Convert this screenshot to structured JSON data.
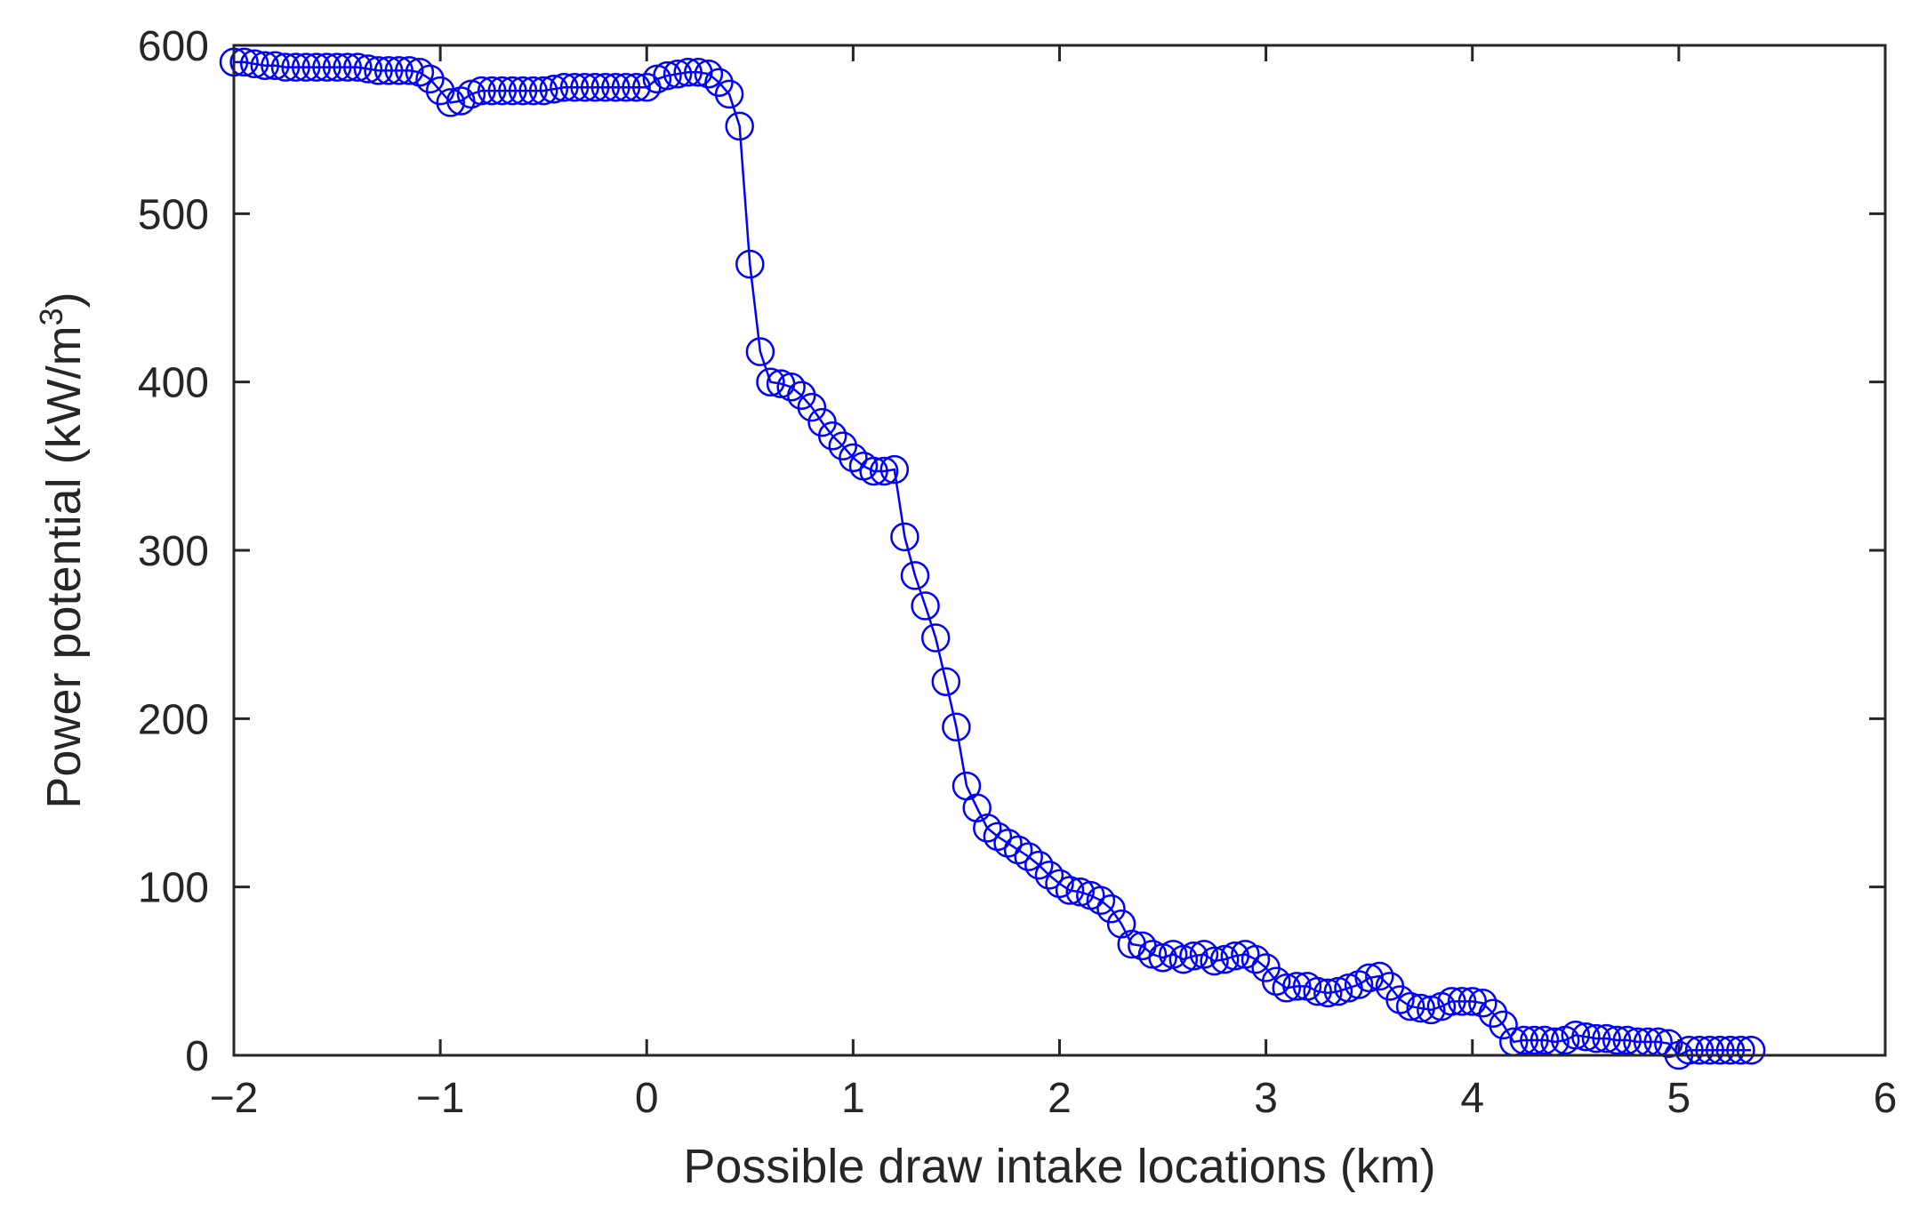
{
  "chart_data": {
    "type": "line",
    "title": "",
    "xlabel": "Possible draw intake locations (km)",
    "ylabel": {
      "main": "Power potential (kW/m",
      "superscript": "3",
      "tail": ")"
    },
    "xlim": [
      -2,
      6
    ],
    "ylim": [
      0,
      600
    ],
    "xticks": [
      {
        "value": -2,
        "label": "−2"
      },
      {
        "value": -1,
        "label": "−1"
      },
      {
        "value": 0,
        "label": "0"
      },
      {
        "value": 1,
        "label": "1"
      },
      {
        "value": 2,
        "label": "2"
      },
      {
        "value": 3,
        "label": "3"
      },
      {
        "value": 4,
        "label": "4"
      },
      {
        "value": 5,
        "label": "5"
      },
      {
        "value": 6,
        "label": "6"
      }
    ],
    "yticks": [
      {
        "value": 0,
        "label": "0"
      },
      {
        "value": 100,
        "label": "100"
      },
      {
        "value": 200,
        "label": "200"
      },
      {
        "value": 300,
        "label": "300"
      },
      {
        "value": 400,
        "label": "400"
      },
      {
        "value": 500,
        "label": "500"
      },
      {
        "value": 600,
        "label": "600"
      }
    ],
    "grid": false,
    "marker": "circle",
    "color": "#0000ff",
    "axis_color": "#262626",
    "series": [
      {
        "x": [
          -2.0,
          -1.95,
          -1.9,
          -1.85,
          -1.8,
          -1.75,
          -1.7,
          -1.65,
          -1.6,
          -1.55,
          -1.5,
          -1.45,
          -1.4,
          -1.35,
          -1.3,
          -1.25,
          -1.2,
          -1.15,
          -1.1,
          -1.05,
          -1.0,
          -0.95,
          -0.9,
          -0.85,
          -0.8,
          -0.75,
          -0.7,
          -0.65,
          -0.6,
          -0.55,
          -0.5,
          -0.45,
          -0.4,
          -0.35,
          -0.3,
          -0.25,
          -0.2,
          -0.15,
          -0.1,
          -0.05,
          0.0,
          0.05,
          0.1,
          0.15,
          0.2,
          0.25,
          0.3,
          0.35,
          0.4,
          0.45,
          0.5,
          0.55,
          0.6,
          0.65,
          0.7,
          0.75,
          0.8,
          0.85,
          0.9,
          0.95,
          1.0,
          1.05,
          1.1,
          1.15,
          1.2,
          1.25,
          1.3,
          1.35,
          1.4,
          1.45,
          1.5,
          1.55,
          1.6,
          1.65,
          1.7,
          1.75,
          1.8,
          1.85,
          1.9,
          1.95,
          2.0,
          2.05,
          2.1,
          2.15,
          2.2,
          2.25,
          2.3,
          2.35,
          2.4,
          2.45,
          2.5,
          2.55,
          2.6,
          2.65,
          2.7,
          2.75,
          2.8,
          2.85,
          2.9,
          2.95,
          3.0,
          3.05,
          3.1,
          3.15,
          3.2,
          3.25,
          3.3,
          3.35,
          3.4,
          3.45,
          3.5,
          3.55,
          3.6,
          3.65,
          3.7,
          3.75,
          3.8,
          3.85,
          3.9,
          3.95,
          4.0,
          4.05,
          4.1,
          4.15,
          4.2,
          4.25,
          4.3,
          4.35,
          4.4,
          4.45,
          4.5,
          4.55,
          4.6,
          4.65,
          4.7,
          4.75,
          4.8,
          4.85,
          4.9,
          4.95,
          5.0,
          5.05,
          5.1,
          5.15,
          5.2,
          5.25,
          5.3,
          5.35
        ],
        "y": [
          590,
          590,
          589,
          588,
          588,
          587,
          587,
          587,
          587,
          587,
          587,
          587,
          587,
          586,
          585,
          585,
          585,
          585,
          584,
          580,
          573,
          566,
          567,
          571,
          573,
          573,
          573,
          573,
          573,
          573,
          573,
          574,
          575,
          575,
          575,
          575,
          575,
          575,
          575,
          575,
          575,
          580,
          582,
          583,
          584,
          584,
          583,
          578,
          571,
          552,
          470,
          418,
          400,
          399,
          397,
          392,
          385,
          376,
          368,
          362,
          355,
          350,
          347,
          347,
          348,
          308,
          285,
          267,
          248,
          222,
          195,
          160,
          147,
          135,
          130,
          126,
          122,
          118,
          113,
          107,
          102,
          98,
          97,
          95,
          92,
          87,
          78,
          66,
          65,
          60,
          58,
          60,
          57,
          59,
          60,
          56,
          57,
          59,
          60,
          57,
          52,
          44,
          40,
          41,
          41,
          38,
          37,
          38,
          40,
          42,
          46,
          47,
          41,
          33,
          29,
          28,
          27,
          29,
          32,
          32,
          32,
          31,
          25,
          18,
          8,
          9,
          9,
          9,
          8,
          9,
          12,
          11,
          10,
          10,
          9,
          9,
          8,
          8,
          8,
          7,
          0,
          3,
          3,
          3,
          3,
          3,
          3,
          3
        ]
      }
    ]
  }
}
